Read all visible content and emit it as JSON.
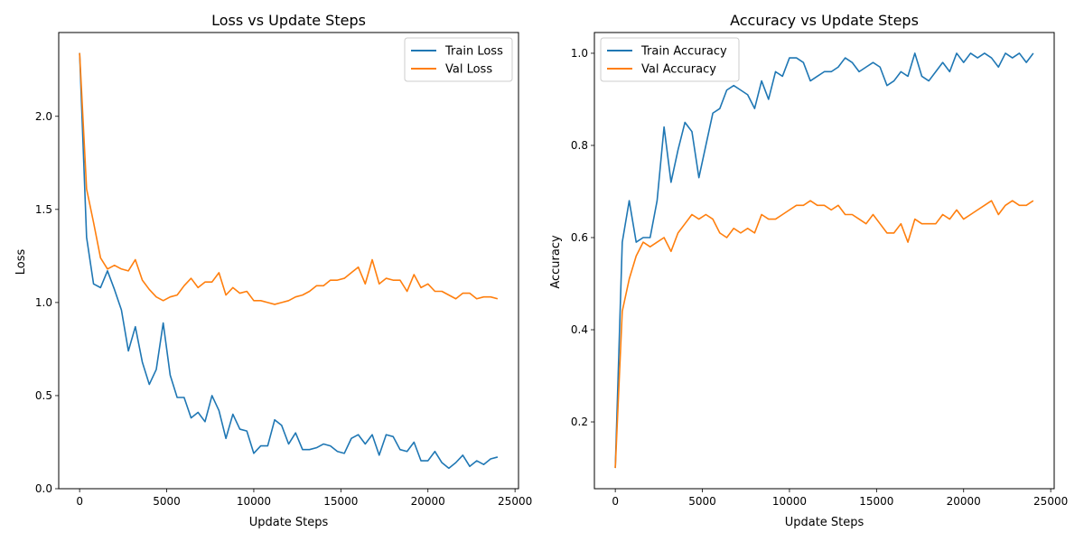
{
  "chart_data": [
    {
      "type": "line",
      "title": "Loss vs Update Steps",
      "xlabel": "Update Steps",
      "ylabel": "Loss",
      "xlim": [
        -1200,
        25200
      ],
      "ylim": [
        0.0,
        2.45
      ],
      "xticks": [
        0,
        5000,
        10000,
        15000,
        20000,
        25000
      ],
      "xtick_labels": [
        "0",
        "5000",
        "10000",
        "15000",
        "20000",
        "25000"
      ],
      "yticks": [
        0.0,
        0.5,
        1.0,
        1.5,
        2.0
      ],
      "ytick_labels": [
        "0.0",
        "0.5",
        "1.0",
        "1.5",
        "2.0"
      ],
      "legend": "top-right",
      "grid": false,
      "x": [
        0,
        400,
        800,
        1200,
        1600,
        2000,
        2400,
        2800,
        3200,
        3600,
        4000,
        4400,
        4800,
        5200,
        5600,
        6000,
        6400,
        6800,
        7200,
        7600,
        8000,
        8400,
        8800,
        9200,
        9600,
        10000,
        10400,
        10800,
        11200,
        11600,
        12000,
        12400,
        12800,
        13200,
        13600,
        14000,
        14400,
        14800,
        15200,
        15600,
        16000,
        16400,
        16800,
        17200,
        17600,
        18000,
        18400,
        18800,
        19200,
        19600,
        20000,
        20400,
        20800,
        21200,
        21600,
        22000,
        22400,
        22800,
        23200,
        23600,
        24000
      ],
      "series": [
        {
          "name": "Train Loss",
          "color": "#1f77b4",
          "values": [
            2.34,
            1.35,
            1.1,
            1.08,
            1.17,
            1.07,
            0.96,
            0.74,
            0.87,
            0.68,
            0.56,
            0.64,
            0.89,
            0.61,
            0.49,
            0.49,
            0.38,
            0.41,
            0.36,
            0.5,
            0.42,
            0.27,
            0.4,
            0.32,
            0.31,
            0.19,
            0.23,
            0.23,
            0.37,
            0.34,
            0.24,
            0.3,
            0.21,
            0.21,
            0.22,
            0.24,
            0.23,
            0.2,
            0.19,
            0.27,
            0.29,
            0.24,
            0.29,
            0.18,
            0.29,
            0.28,
            0.21,
            0.2,
            0.25,
            0.15,
            0.15,
            0.2,
            0.14,
            0.11,
            0.14,
            0.18,
            0.12,
            0.15,
            0.13,
            0.16,
            0.17
          ]
        },
        {
          "name": "Val Loss",
          "color": "#ff7f0e",
          "values": [
            2.34,
            1.61,
            1.43,
            1.24,
            1.18,
            1.2,
            1.18,
            1.17,
            1.23,
            1.12,
            1.07,
            1.03,
            1.01,
            1.03,
            1.04,
            1.09,
            1.13,
            1.08,
            1.11,
            1.11,
            1.16,
            1.04,
            1.08,
            1.05,
            1.06,
            1.01,
            1.01,
            1.0,
            0.99,
            1.0,
            1.01,
            1.03,
            1.04,
            1.06,
            1.09,
            1.09,
            1.12,
            1.12,
            1.13,
            1.16,
            1.19,
            1.1,
            1.23,
            1.1,
            1.13,
            1.12,
            1.12,
            1.06,
            1.15,
            1.08,
            1.1,
            1.06,
            1.06,
            1.04,
            1.02,
            1.05,
            1.05,
            1.02,
            1.03,
            1.03,
            1.02
          ]
        }
      ]
    },
    {
      "type": "line",
      "title": "Accuracy vs Update Steps",
      "xlabel": "Update Steps",
      "ylabel": "Accuracy",
      "xlim": [
        -1200,
        25200
      ],
      "ylim": [
        0.055,
        1.045
      ],
      "xticks": [
        0,
        5000,
        10000,
        15000,
        20000,
        25000
      ],
      "xtick_labels": [
        "0",
        "5000",
        "10000",
        "15000",
        "20000",
        "25000"
      ],
      "yticks": [
        0.2,
        0.4,
        0.6,
        0.8,
        1.0
      ],
      "ytick_labels": [
        "0.2",
        "0.4",
        "0.6",
        "0.8",
        "1.0"
      ],
      "legend": "top-left",
      "grid": false,
      "x": [
        0,
        400,
        800,
        1200,
        1600,
        2000,
        2400,
        2800,
        3200,
        3600,
        4000,
        4400,
        4800,
        5200,
        5600,
        6000,
        6400,
        6800,
        7200,
        7600,
        8000,
        8400,
        8800,
        9200,
        9600,
        10000,
        10400,
        10800,
        11200,
        11600,
        12000,
        12400,
        12800,
        13200,
        13600,
        14000,
        14400,
        14800,
        15200,
        15600,
        16000,
        16400,
        16800,
        17200,
        17600,
        18000,
        18400,
        18800,
        19200,
        19600,
        20000,
        20400,
        20800,
        21200,
        21600,
        22000,
        22400,
        22800,
        23200,
        23600,
        24000
      ],
      "series": [
        {
          "name": "Train Accuracy",
          "color": "#1f77b4",
          "values": [
            0.1,
            0.59,
            0.68,
            0.59,
            0.6,
            0.6,
            0.68,
            0.84,
            0.72,
            0.79,
            0.85,
            0.83,
            0.73,
            0.8,
            0.87,
            0.88,
            0.92,
            0.93,
            0.92,
            0.91,
            0.88,
            0.94,
            0.9,
            0.96,
            0.95,
            0.99,
            0.99,
            0.98,
            0.94,
            0.95,
            0.96,
            0.96,
            0.97,
            0.99,
            0.98,
            0.96,
            0.97,
            0.98,
            0.97,
            0.93,
            0.94,
            0.96,
            0.95,
            1.0,
            0.95,
            0.94,
            0.96,
            0.98,
            0.96,
            1.0,
            0.98,
            1.0,
            0.99,
            1.0,
            0.99,
            0.97,
            1.0,
            0.99,
            1.0,
            0.98,
            1.0
          ]
        },
        {
          "name": "Val Accuracy",
          "color": "#ff7f0e",
          "values": [
            0.1,
            0.44,
            0.51,
            0.56,
            0.59,
            0.58,
            0.59,
            0.6,
            0.57,
            0.61,
            0.63,
            0.65,
            0.64,
            0.65,
            0.64,
            0.61,
            0.6,
            0.62,
            0.61,
            0.62,
            0.61,
            0.65,
            0.64,
            0.64,
            0.65,
            0.66,
            0.67,
            0.67,
            0.68,
            0.67,
            0.67,
            0.66,
            0.67,
            0.65,
            0.65,
            0.64,
            0.63,
            0.65,
            0.63,
            0.61,
            0.61,
            0.63,
            0.59,
            0.64,
            0.63,
            0.63,
            0.63,
            0.65,
            0.64,
            0.66,
            0.64,
            0.65,
            0.66,
            0.67,
            0.68,
            0.65,
            0.67,
            0.68,
            0.67,
            0.67,
            0.68
          ]
        }
      ]
    }
  ]
}
